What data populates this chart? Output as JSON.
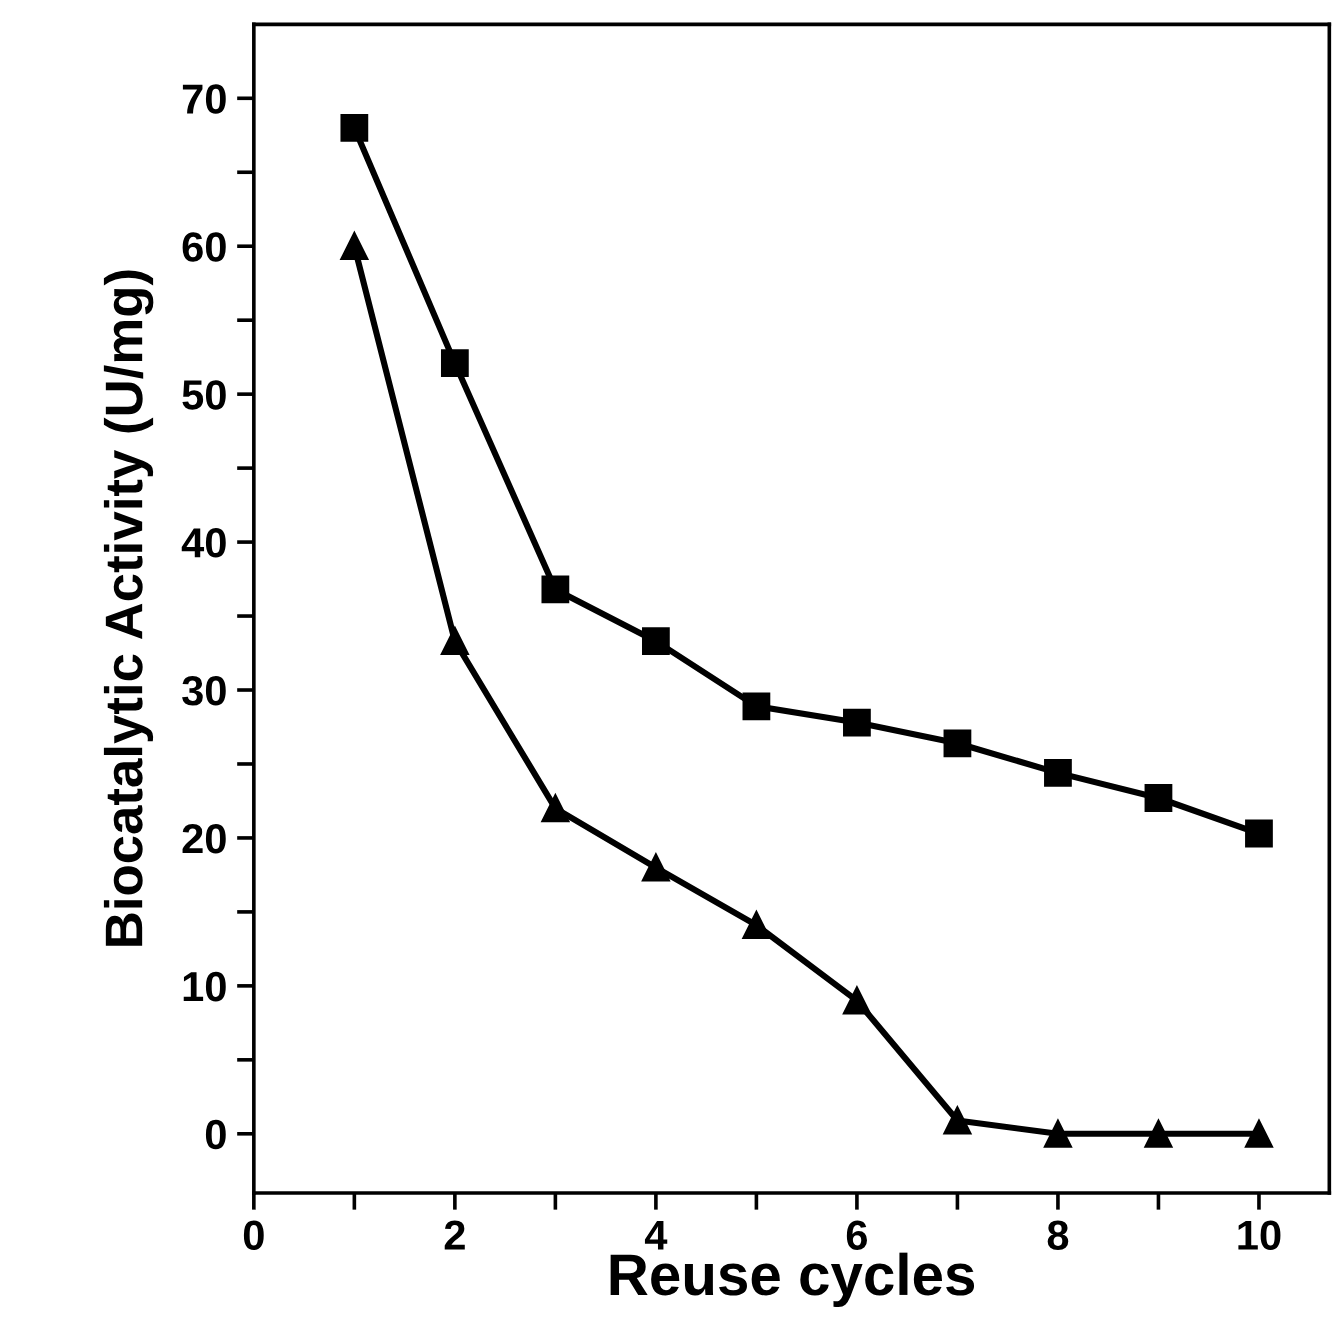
{
  "chart_data": {
    "type": "line",
    "xlabel": "Reuse cycles",
    "ylabel": "Biocatalytic Activity (U/mg)",
    "x": [
      1,
      2,
      3,
      4,
      5,
      6,
      7,
      8,
      9,
      10
    ],
    "series": [
      {
        "color": "#000000",
        "marker": "square",
        "values": [
          68,
          52.1,
          36.8,
          33.3,
          28.9,
          27.8,
          26.4,
          24.4,
          22.7,
          20.3
        ]
      },
      {
        "color": "#000000",
        "marker": "triangle",
        "values": [
          60,
          33.3,
          22,
          18,
          14.1,
          9,
          0.9,
          0,
          0,
          0
        ]
      }
    ],
    "xlim": [
      0,
      10.7
    ],
    "ylim": [
      -4,
      75
    ],
    "xticks": [
      0,
      {
        "value": 1,
        "label": null
      },
      2,
      {
        "value": 3,
        "label": null
      },
      4,
      {
        "value": 5,
        "label": null
      },
      6,
      {
        "value": 7,
        "label": null
      },
      8,
      {
        "value": 9,
        "label": null
      },
      10
    ],
    "yticks": [
      0,
      {
        "value": 5,
        "label": null
      },
      10,
      {
        "value": 15,
        "label": null
      },
      20,
      {
        "value": 25,
        "label": null
      },
      30,
      {
        "value": 35,
        "label": null
      },
      40,
      {
        "value": 45,
        "label": null
      },
      50,
      {
        "value": 55,
        "label": null
      },
      60,
      {
        "value": 65,
        "label": null
      },
      70
    ],
    "grid": false,
    "legend": false,
    "line_style": "solid"
  }
}
